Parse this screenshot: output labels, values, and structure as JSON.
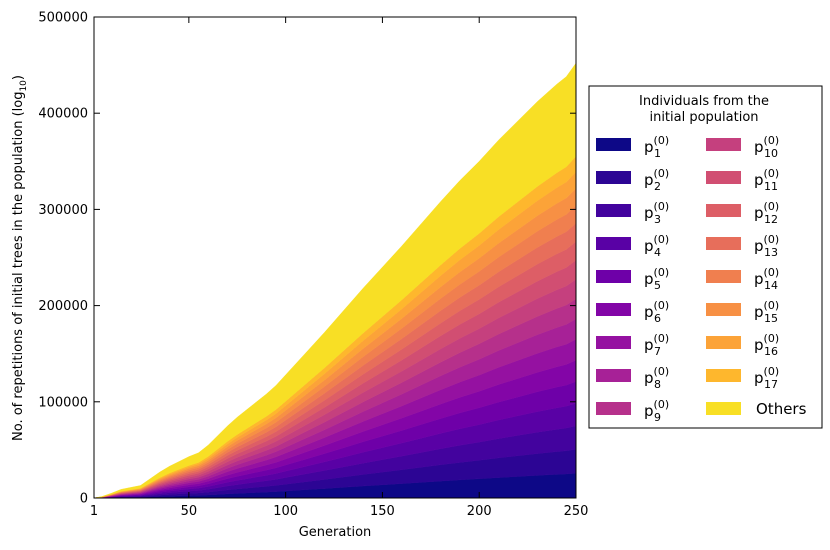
{
  "chart_data": {
    "type": "area",
    "stacked": true,
    "xlabel": "Generation",
    "ylabel_main": "No. of repetitions of initial trees in the population (log",
    "ylabel_sub": "10",
    "ylabel_close": ")",
    "xlim": [
      1,
      250
    ],
    "ylim": [
      0,
      500000
    ],
    "x_ticks": [
      1,
      50,
      100,
      150,
      200,
      250
    ],
    "x_tick_labels": [
      "1",
      "50",
      "100",
      "150",
      "200",
      "250"
    ],
    "y_ticks": [
      0,
      100000,
      200000,
      300000,
      400000,
      500000
    ],
    "y_tick_labels": [
      "0",
      "100000",
      "200000",
      "300000",
      "400000",
      "500000"
    ],
    "total_curve": {
      "x": [
        1,
        5,
        10,
        15,
        20,
        25,
        30,
        35,
        40,
        45,
        50,
        55,
        60,
        65,
        70,
        75,
        80,
        85,
        90,
        95,
        100,
        110,
        120,
        130,
        140,
        150,
        160,
        170,
        180,
        190,
        200,
        210,
        220,
        230,
        240,
        245,
        250
      ],
      "y": [
        0,
        1500,
        5000,
        9000,
        11000,
        13000,
        20000,
        27000,
        33000,
        38000,
        43000,
        47000,
        55000,
        65000,
        75000,
        84000,
        92000,
        100000,
        108000,
        117000,
        128000,
        150000,
        172000,
        195000,
        218000,
        240000,
        262000,
        285000,
        308000,
        330000,
        350000,
        372000,
        392000,
        412000,
        430000,
        438000,
        452000
      ]
    },
    "series_top_fractions": [
      0.057,
      0.112,
      0.166,
      0.218,
      0.268,
      0.317,
      0.365,
      0.412,
      0.458,
      0.503,
      0.547,
      0.59,
      0.632,
      0.673,
      0.712,
      0.75,
      0.786,
      1.0
    ],
    "series": [
      {
        "name": "p",
        "sub": "1",
        "sup": "(0)",
        "color": "#0d0887"
      },
      {
        "name": "p",
        "sub": "2",
        "sup": "(0)",
        "color": "#2c0594"
      },
      {
        "name": "p",
        "sub": "3",
        "sup": "(0)",
        "color": "#43039e"
      },
      {
        "name": "p",
        "sub": "4",
        "sup": "(0)",
        "color": "#5901a5"
      },
      {
        "name": "p",
        "sub": "5",
        "sup": "(0)",
        "color": "#6e00a8"
      },
      {
        "name": "p",
        "sub": "6",
        "sup": "(0)",
        "color": "#8305a7"
      },
      {
        "name": "p",
        "sub": "7",
        "sup": "(0)",
        "color": "#9511a1"
      },
      {
        "name": "p",
        "sub": "8",
        "sup": "(0)",
        "color": "#a72197"
      },
      {
        "name": "p",
        "sub": "9",
        "sup": "(0)",
        "color": "#b6308b"
      },
      {
        "name": "p",
        "sub": "10",
        "sup": "(0)",
        "color": "#c5407e"
      },
      {
        "name": "p",
        "sub": "11",
        "sup": "(0)",
        "color": "#d14e72"
      },
      {
        "name": "p",
        "sub": "12",
        "sup": "(0)",
        "color": "#dd5e66"
      },
      {
        "name": "p",
        "sub": "13",
        "sup": "(0)",
        "color": "#e76e5b"
      },
      {
        "name": "p",
        "sub": "14",
        "sup": "(0)",
        "color": "#f07f4f"
      },
      {
        "name": "p",
        "sub": "15",
        "sup": "(0)",
        "color": "#f79044"
      },
      {
        "name": "p",
        "sub": "16",
        "sup": "(0)",
        "color": "#fca338"
      },
      {
        "name": "p",
        "sub": "17",
        "sup": "(0)",
        "color": "#feb72d"
      },
      {
        "name": "Others",
        "sub": "",
        "sup": "",
        "color": "#f8df25"
      }
    ],
    "legend": {
      "title_line1": "Individuals from the",
      "title_line2": "initial population",
      "placement": "right, outside plot",
      "columns": 2
    }
  }
}
